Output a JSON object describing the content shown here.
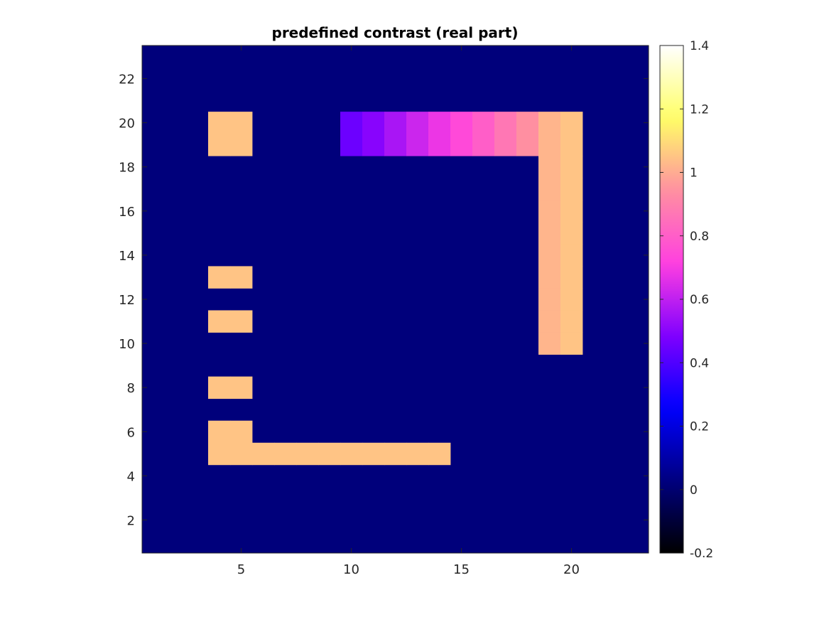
{
  "chart_data": {
    "type": "heatmap",
    "title": "predefined contrast (real part)",
    "xlabel": "",
    "ylabel": "",
    "grid": false,
    "xlim": [
      0.5,
      23.5
    ],
    "ylim": [
      0.5,
      23.5
    ],
    "x_ticks": [
      5,
      10,
      15,
      20
    ],
    "y_ticks": [
      2,
      4,
      6,
      8,
      10,
      12,
      14,
      16,
      18,
      20,
      22
    ],
    "colorbar": {
      "position": "right",
      "limits": [
        -0.2,
        1.4
      ],
      "ticks": [
        -0.2,
        0,
        0.2,
        0.4,
        0.6,
        0.8,
        1,
        1.2,
        1.4
      ],
      "tick_labels": [
        "-0.2",
        "0",
        "0.2",
        "0.4",
        "0.6",
        "0.8",
        "1",
        "1.2",
        "1.4"
      ],
      "colormap": [
        "#000000",
        "#000080",
        "#0000ff",
        "#8000ff",
        "#ff40e0",
        "#ff90a0",
        "#ffff66",
        "#ffffff"
      ]
    },
    "background_value": 0.02,
    "cells": [
      {
        "x": 4,
        "y": 19,
        "value": 1.05
      },
      {
        "x": 5,
        "y": 19,
        "value": 1.05
      },
      {
        "x": 4,
        "y": 20,
        "value": 1.05
      },
      {
        "x": 5,
        "y": 20,
        "value": 1.05
      },
      {
        "x": 4,
        "y": 13,
        "value": 1.05
      },
      {
        "x": 5,
        "y": 13,
        "value": 1.05
      },
      {
        "x": 4,
        "y": 11,
        "value": 1.05
      },
      {
        "x": 5,
        "y": 11,
        "value": 1.05
      },
      {
        "x": 4,
        "y": 8,
        "value": 1.05
      },
      {
        "x": 5,
        "y": 8,
        "value": 1.05
      },
      {
        "x": 4,
        "y": 6,
        "value": 1.05
      },
      {
        "x": 5,
        "y": 6,
        "value": 1.05
      },
      {
        "x": 4,
        "y": 5,
        "value": 1.05
      },
      {
        "x": 5,
        "y": 5,
        "value": 1.05
      },
      {
        "x": 6,
        "y": 5,
        "value": 1.05
      },
      {
        "x": 7,
        "y": 5,
        "value": 1.05
      },
      {
        "x": 8,
        "y": 5,
        "value": 1.05
      },
      {
        "x": 9,
        "y": 5,
        "value": 1.05
      },
      {
        "x": 10,
        "y": 5,
        "value": 1.05
      },
      {
        "x": 11,
        "y": 5,
        "value": 1.05
      },
      {
        "x": 12,
        "y": 5,
        "value": 1.05
      },
      {
        "x": 13,
        "y": 5,
        "value": 1.05
      },
      {
        "x": 14,
        "y": 5,
        "value": 1.05
      },
      {
        "x": 10,
        "y": 19,
        "value": 0.45
      },
      {
        "x": 10,
        "y": 20,
        "value": 0.45
      },
      {
        "x": 11,
        "y": 19,
        "value": 0.5
      },
      {
        "x": 11,
        "y": 20,
        "value": 0.5
      },
      {
        "x": 12,
        "y": 19,
        "value": 0.56
      },
      {
        "x": 12,
        "y": 20,
        "value": 0.56
      },
      {
        "x": 13,
        "y": 19,
        "value": 0.62
      },
      {
        "x": 13,
        "y": 20,
        "value": 0.62
      },
      {
        "x": 14,
        "y": 19,
        "value": 0.68
      },
      {
        "x": 14,
        "y": 20,
        "value": 0.68
      },
      {
        "x": 15,
        "y": 19,
        "value": 0.74
      },
      {
        "x": 15,
        "y": 20,
        "value": 0.74
      },
      {
        "x": 16,
        "y": 19,
        "value": 0.8
      },
      {
        "x": 16,
        "y": 20,
        "value": 0.8
      },
      {
        "x": 17,
        "y": 19,
        "value": 0.87
      },
      {
        "x": 17,
        "y": 20,
        "value": 0.87
      },
      {
        "x": 18,
        "y": 19,
        "value": 0.94
      },
      {
        "x": 18,
        "y": 20,
        "value": 0.94
      },
      {
        "x": 19,
        "y": 10,
        "value": 1.02
      },
      {
        "x": 19,
        "y": 11,
        "value": 1.02
      },
      {
        "x": 19,
        "y": 12,
        "value": 1.02
      },
      {
        "x": 19,
        "y": 13,
        "value": 1.02
      },
      {
        "x": 19,
        "y": 14,
        "value": 1.02
      },
      {
        "x": 19,
        "y": 15,
        "value": 1.02
      },
      {
        "x": 19,
        "y": 16,
        "value": 1.02
      },
      {
        "x": 19,
        "y": 17,
        "value": 1.02
      },
      {
        "x": 19,
        "y": 18,
        "value": 1.02
      },
      {
        "x": 19,
        "y": 19,
        "value": 1.02
      },
      {
        "x": 19,
        "y": 20,
        "value": 1.02
      },
      {
        "x": 20,
        "y": 10,
        "value": 1.05
      },
      {
        "x": 20,
        "y": 11,
        "value": 1.05
      },
      {
        "x": 20,
        "y": 12,
        "value": 1.05
      },
      {
        "x": 20,
        "y": 13,
        "value": 1.05
      },
      {
        "x": 20,
        "y": 14,
        "value": 1.05
      },
      {
        "x": 20,
        "y": 15,
        "value": 1.05
      },
      {
        "x": 20,
        "y": 16,
        "value": 1.05
      },
      {
        "x": 20,
        "y": 17,
        "value": 1.05
      },
      {
        "x": 20,
        "y": 18,
        "value": 1.05
      },
      {
        "x": 20,
        "y": 19,
        "value": 1.05
      },
      {
        "x": 20,
        "y": 20,
        "value": 1.05
      }
    ]
  }
}
